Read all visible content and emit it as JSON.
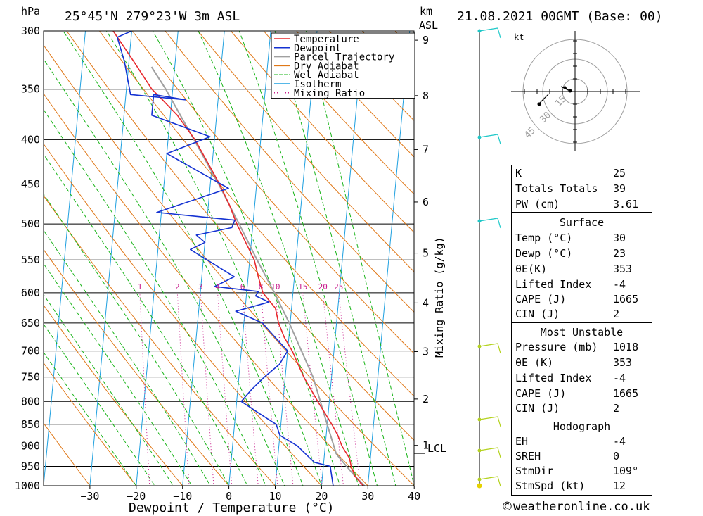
{
  "header": {
    "pressure_unit": "hPa",
    "location": "25°45'N  279°23'W  3m  ASL",
    "height_unit": "km",
    "height_unit2": "ASL",
    "datetime": "21.08.2021  00GMT  (Base: 00)"
  },
  "chart_data": {
    "type": "line",
    "chart_kind": "skew-T log-P",
    "xlabel": "Dewpoint / Temperature (°C)",
    "ylabel": "hPa",
    "right_axis_label": "Mixing Ratio (g/kg)",
    "x_ticks": [
      -30,
      -20,
      -10,
      0,
      10,
      20,
      30,
      40
    ],
    "pressure_levels": [
      300,
      350,
      400,
      450,
      500,
      550,
      600,
      650,
      700,
      750,
      800,
      850,
      900,
      950,
      1000
    ],
    "height_ticks_km": [
      1,
      2,
      3,
      4,
      5,
      6,
      7,
      8,
      9
    ],
    "lcl_label": "LCL",
    "lcl_pressure": 918,
    "mixing_ratio_labels": [
      "1",
      "2",
      "3",
      "4",
      "6",
      "8",
      "10",
      "15",
      "20",
      "25"
    ],
    "legend": [
      {
        "name": "Temperature",
        "color": "#e8282c"
      },
      {
        "name": "Dewpoint",
        "color": "#1432d2"
      },
      {
        "name": "Parcel Trajectory",
        "color": "#a0a0a0"
      },
      {
        "name": "Dry Adiabat",
        "color": "#e07818"
      },
      {
        "name": "Wet Adiabat",
        "color": "#18b418"
      },
      {
        "name": "Isotherm",
        "color": "#1ea0e0"
      },
      {
        "name": "Mixing Ratio",
        "color": "#c81e8c"
      }
    ],
    "series": [
      {
        "name": "Temperature",
        "color": "#e8282c",
        "points": [
          [
            30.4,
            1013
          ],
          [
            29,
            1000
          ],
          [
            27,
            975
          ],
          [
            26,
            950
          ],
          [
            25.5,
            930
          ],
          [
            23.6,
            900
          ],
          [
            22.5,
            875
          ],
          [
            21,
            850
          ],
          [
            17.5,
            800
          ],
          [
            14,
            750
          ],
          [
            11,
            700
          ],
          [
            9,
            675
          ],
          [
            7.5,
            650
          ],
          [
            6.5,
            625
          ],
          [
            3.5,
            600
          ],
          [
            2.2,
            575
          ],
          [
            1,
            550
          ],
          [
            -1.2,
            525
          ],
          [
            -3.5,
            500
          ],
          [
            -5.5,
            475
          ],
          [
            -8,
            450
          ],
          [
            -11,
            425
          ],
          [
            -14.2,
            400
          ],
          [
            -18.5,
            375
          ],
          [
            -22,
            360
          ],
          [
            -24.5,
            350
          ],
          [
            -29,
            325
          ],
          [
            -34,
            300
          ]
        ]
      },
      {
        "name": "Dewpoint",
        "color": "#1432d2",
        "points": [
          [
            23,
            1013
          ],
          [
            22.5,
            1000
          ],
          [
            22,
            975
          ],
          [
            21.5,
            950
          ],
          [
            18,
            940
          ],
          [
            16.5,
            925
          ],
          [
            14,
            900
          ],
          [
            10,
            875
          ],
          [
            9,
            850
          ],
          [
            5,
            825
          ],
          [
            1,
            800
          ],
          [
            3,
            775
          ],
          [
            5.5,
            750
          ],
          [
            8.5,
            725
          ],
          [
            10,
            700
          ],
          [
            7,
            675
          ],
          [
            4,
            650
          ],
          [
            -2,
            630
          ],
          [
            5,
            615
          ],
          [
            2,
            605
          ],
          [
            2.5,
            598
          ],
          [
            -7,
            590
          ],
          [
            -3,
            575
          ],
          [
            -13,
            535
          ],
          [
            -10,
            525
          ],
          [
            -12,
            515
          ],
          [
            -4.5,
            505
          ],
          [
            -4,
            495
          ],
          [
            -21,
            485
          ],
          [
            -6,
            455
          ],
          [
            -20,
            415
          ],
          [
            -11,
            397
          ],
          [
            -24,
            375
          ],
          [
            -24,
            355
          ],
          [
            -17,
            360
          ],
          [
            -29,
            355
          ],
          [
            -31,
            325
          ],
          [
            -33,
            305
          ],
          [
            -30,
            300
          ]
        ]
      },
      {
        "name": "Parcel Trajectory",
        "color": "#a0a0a0",
        "points": [
          [
            30.4,
            1013
          ],
          [
            27,
            975
          ],
          [
            23.4,
            930
          ],
          [
            22.5,
            918
          ],
          [
            20,
            850
          ],
          [
            16,
            750
          ],
          [
            13,
            700
          ],
          [
            9.8,
            650
          ],
          [
            6,
            600
          ],
          [
            1.6,
            550
          ],
          [
            -3,
            500
          ],
          [
            -8.2,
            450
          ],
          [
            -14.4,
            400
          ],
          [
            -21.5,
            350
          ],
          [
            -25,
            330
          ]
        ]
      }
    ]
  },
  "hodograph": {
    "unit_label": "kt",
    "ring_labels": [
      "15",
      "30",
      "45"
    ]
  },
  "indices": {
    "rows": [
      {
        "label": "K",
        "value": "25"
      },
      {
        "label": "Totals Totals",
        "value": "39"
      },
      {
        "label": "PW (cm)",
        "value": "3.61"
      }
    ]
  },
  "surface": {
    "title": "Surface",
    "rows": [
      {
        "label": "Temp (°C)",
        "value": "30"
      },
      {
        "label": "Dewp (°C)",
        "value": "23"
      },
      {
        "label": "θE(K)",
        "value": "353"
      },
      {
        "label": "Lifted Index",
        "value": "-4"
      },
      {
        "label": "CAPE (J)",
        "value": "1665"
      },
      {
        "label": "CIN (J)",
        "value": "2"
      }
    ]
  },
  "most_unstable": {
    "title": "Most Unstable",
    "rows": [
      {
        "label": "Pressure (mb)",
        "value": "1018"
      },
      {
        "label": "θE (K)",
        "value": "353"
      },
      {
        "label": "Lifted Index",
        "value": "-4"
      },
      {
        "label": "CAPE (J)",
        "value": "1665"
      },
      {
        "label": "CIN (J)",
        "value": "2"
      }
    ]
  },
  "hodograph_table": {
    "title": "Hodograph",
    "rows": [
      {
        "label": "EH",
        "value": "-4"
      },
      {
        "label": "SREH",
        "value": "0"
      },
      {
        "label": "StmDir",
        "value": "109°"
      },
      {
        "label": "StmSpd (kt)",
        "value": "12"
      }
    ]
  },
  "copyright": {
    "symbol": "©",
    "text": "weatheronline.co.uk"
  },
  "colors": {
    "wind_barb_upper": "#1ec8c8",
    "wind_barb_lower": "#b4d21e",
    "surface_dot": "#e6d200"
  }
}
